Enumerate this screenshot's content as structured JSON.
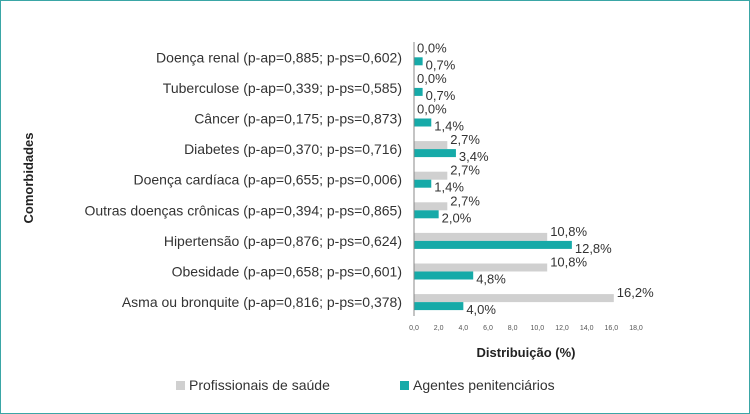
{
  "chart_data": {
    "type": "bar",
    "orientation": "horizontal",
    "title": "",
    "xlabel": "Distribuição (%)",
    "ylabel": "Comorbidades",
    "xlim": [
      0,
      18
    ],
    "xticks": [
      "0,0",
      "2,0",
      "4,0",
      "6,0",
      "8,0",
      "10,0",
      "12,0",
      "14,0",
      "16,0",
      "18,0"
    ],
    "grid": false,
    "legend_position": "bottom",
    "categories": [
      "Doença renal (p-ap=0,885; p-ps=0,602)",
      "Tuberculose (p-ap=0,339; p-ps=0,585)",
      "Câncer (p-ap=0,175; p-ps=0,873)",
      "Diabetes (p-ap=0,370; p-ps=0,716)",
      "Doença cardíaca (p-ap=0,655; p-ps=0,006)",
      "Outras doenças crônicas (p-ap=0,394; p-ps=0,865)",
      "Hipertensão (p-ap=0,876; p-ps=0,624)",
      "Obesidade (p-ap=0,658; p-ps=0,601)",
      "Asma ou bronquite (p-ap=0,816; p-ps=0,378)"
    ],
    "series": [
      {
        "name": "Profissionais de saúde",
        "color": "#d0d0d0",
        "values": [
          0.0,
          0.0,
          0.0,
          2.7,
          2.7,
          2.7,
          10.8,
          10.8,
          16.2
        ],
        "labels": [
          "0,0%",
          "0,0%",
          "0,0%",
          "2,7%",
          "2,7%",
          "2,7%",
          "10,8%",
          "10,8%",
          "16,2%"
        ]
      },
      {
        "name": "Agentes penitenciários",
        "color": "#16aaa8",
        "values": [
          0.7,
          0.7,
          1.4,
          3.4,
          1.4,
          2.0,
          12.8,
          4.8,
          4.0
        ],
        "labels": [
          "0,7%",
          "0,7%",
          "1,4%",
          "3,4%",
          "1,4%",
          "2,0%",
          "12,8%",
          "4,8%",
          "4,0%"
        ]
      }
    ]
  }
}
